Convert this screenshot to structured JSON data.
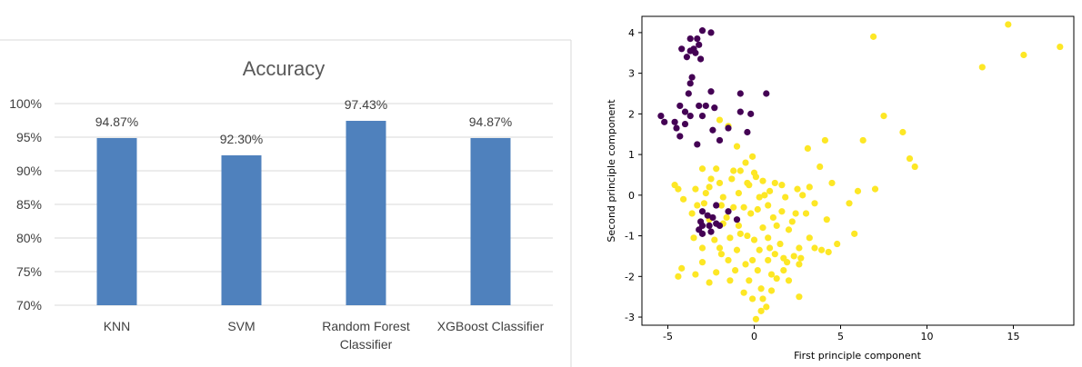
{
  "chart_data": [
    {
      "type": "bar",
      "title": "Accuracy",
      "categories": [
        "KNN",
        "SVM",
        "Random Forest Classifier",
        "XGBoost Classifier"
      ],
      "category_lines": [
        [
          "KNN"
        ],
        [
          "SVM"
        ],
        [
          "Random Forest",
          "Classifier"
        ],
        [
          "XGBoost Classifier"
        ]
      ],
      "values": [
        94.87,
        92.3,
        97.43,
        94.87
      ],
      "data_labels": [
        "94.87%",
        "92.30%",
        "97.43%",
        "94.87%"
      ],
      "ylim": [
        70,
        100
      ],
      "yticks": [
        70,
        75,
        80,
        85,
        90,
        95,
        100
      ],
      "ytick_labels": [
        "70%",
        "75%",
        "80%",
        "85%",
        "90%",
        "95%",
        "100%"
      ],
      "xlabel": "",
      "ylabel": "",
      "grid": true,
      "bar_color": "#4f81bd",
      "grid_color": "#d9d9d9"
    },
    {
      "type": "scatter",
      "title": "",
      "xlabel": "First principle component",
      "ylabel": "Second principle component",
      "xlim": [
        -6.5,
        18.5
      ],
      "ylim": [
        -3.2,
        4.4
      ],
      "xticks": [
        -5,
        0,
        5,
        10,
        15
      ],
      "yticks": [
        -3,
        -2,
        -1,
        0,
        1,
        2,
        3,
        4
      ],
      "grid": false,
      "series": [
        {
          "color": "#440154",
          "points": [
            [
              -3.0,
              4.05
            ],
            [
              -2.5,
              4.0
            ],
            [
              -3.3,
              3.85
            ],
            [
              -3.7,
              3.85
            ],
            [
              -3.2,
              3.7
            ],
            [
              -4.2,
              3.6
            ],
            [
              -3.5,
              3.6
            ],
            [
              -3.7,
              3.55
            ],
            [
              -3.4,
              3.5
            ],
            [
              -3.9,
              3.4
            ],
            [
              -3.1,
              3.35
            ],
            [
              -3.6,
              2.9
            ],
            [
              -3.7,
              2.75
            ],
            [
              -3.8,
              2.5
            ],
            [
              -2.5,
              2.55
            ],
            [
              -3.2,
              2.2
            ],
            [
              -4.3,
              2.2
            ],
            [
              -2.8,
              2.2
            ],
            [
              -2.3,
              2.15
            ],
            [
              -4.0,
              2.05
            ],
            [
              -3.7,
              1.95
            ],
            [
              -3.0,
              1.95
            ],
            [
              -5.4,
              1.95
            ],
            [
              -5.2,
              1.8
            ],
            [
              -4.6,
              1.8
            ],
            [
              -4.0,
              1.75
            ],
            [
              -4.5,
              1.65
            ],
            [
              -2.4,
              1.6
            ],
            [
              -4.3,
              1.45
            ],
            [
              -3.3,
              1.25
            ],
            [
              -2.0,
              1.35
            ],
            [
              -0.8,
              2.5
            ],
            [
              0.7,
              2.5
            ],
            [
              -0.8,
              2.05
            ],
            [
              -0.2,
              2.0
            ],
            [
              -1.5,
              1.65
            ],
            [
              -0.4,
              1.55
            ],
            [
              -3.0,
              -0.4
            ],
            [
              -2.7,
              -0.5
            ],
            [
              -2.4,
              -0.55
            ],
            [
              -3.1,
              -0.65
            ],
            [
              -2.2,
              -0.7
            ],
            [
              -2.6,
              -0.75
            ],
            [
              -3.0,
              -0.75
            ],
            [
              -2.0,
              -0.75
            ],
            [
              -3.2,
              -0.85
            ],
            [
              -2.5,
              -0.9
            ],
            [
              -3.0,
              -0.95
            ],
            [
              -2.2,
              -0.25
            ],
            [
              -1.5,
              -0.4
            ],
            [
              -1.0,
              -0.6
            ]
          ]
        },
        {
          "color": "#fde725",
          "points": [
            [
              -2.0,
              1.85
            ],
            [
              -1.5,
              1.7
            ],
            [
              -1.0,
              1.2
            ],
            [
              -0.5,
              0.8
            ],
            [
              -0.1,
              0.95
            ],
            [
              -2.2,
              0.65
            ],
            [
              -3.0,
              0.65
            ],
            [
              -1.2,
              0.6
            ],
            [
              -0.8,
              0.6
            ],
            [
              0.0,
              0.55
            ],
            [
              0.1,
              0.45
            ],
            [
              -2.5,
              0.4
            ],
            [
              -2.0,
              0.3
            ],
            [
              -1.3,
              0.4
            ],
            [
              -0.4,
              0.3
            ],
            [
              0.5,
              0.35
            ],
            [
              1.2,
              0.3
            ],
            [
              1.6,
              0.25
            ],
            [
              2.5,
              0.15
            ],
            [
              3.2,
              0.2
            ],
            [
              4.5,
              0.3
            ],
            [
              -4.6,
              0.25
            ],
            [
              -4.4,
              0.15
            ],
            [
              -3.4,
              0.15
            ],
            [
              -2.8,
              0.05
            ],
            [
              -1.8,
              -0.05
            ],
            [
              -0.9,
              0.05
            ],
            [
              0.3,
              -0.05
            ],
            [
              0.9,
              0.1
            ],
            [
              1.8,
              -0.05
            ],
            [
              2.8,
              0.0
            ],
            [
              3.5,
              -0.2
            ],
            [
              -4.1,
              -0.1
            ],
            [
              -3.3,
              -0.25
            ],
            [
              -2.9,
              -0.2
            ],
            [
              -1.9,
              -0.25
            ],
            [
              -1.2,
              -0.3
            ],
            [
              -0.6,
              -0.3
            ],
            [
              0.2,
              -0.35
            ],
            [
              0.8,
              -0.25
            ],
            [
              1.6,
              -0.4
            ],
            [
              2.4,
              -0.45
            ],
            [
              3.0,
              -0.45
            ],
            [
              4.2,
              -0.6
            ],
            [
              -3.6,
              -0.45
            ],
            [
              -2.6,
              -0.6
            ],
            [
              -1.8,
              -0.7
            ],
            [
              -0.9,
              -0.75
            ],
            [
              0.5,
              -0.8
            ],
            [
              1.3,
              -0.75
            ],
            [
              2.0,
              -0.85
            ],
            [
              -2.3,
              -1.1
            ],
            [
              -1.4,
              -1.05
            ],
            [
              -0.4,
              -1.0
            ],
            [
              0.0,
              -1.1
            ],
            [
              0.8,
              -1.05
            ],
            [
              1.5,
              -1.2
            ],
            [
              2.6,
              -1.3
            ],
            [
              3.5,
              -1.3
            ],
            [
              -3.0,
              -1.3
            ],
            [
              -2.0,
              -1.3
            ],
            [
              -1.0,
              -1.35
            ],
            [
              0.3,
              -1.35
            ],
            [
              1.2,
              -1.45
            ],
            [
              2.3,
              -1.5
            ],
            [
              3.9,
              -1.35
            ],
            [
              4.3,
              -1.4
            ],
            [
              -3.0,
              -1.65
            ],
            [
              -1.5,
              -1.6
            ],
            [
              -0.1,
              -1.6
            ],
            [
              0.8,
              -1.6
            ],
            [
              1.7,
              -1.55
            ],
            [
              2.7,
              -1.55
            ],
            [
              -4.2,
              -1.8
            ],
            [
              -2.2,
              -1.9
            ],
            [
              -1.1,
              -1.85
            ],
            [
              0.2,
              -1.85
            ],
            [
              1.0,
              -1.95
            ],
            [
              1.7,
              -1.85
            ],
            [
              2.6,
              -1.7
            ],
            [
              -2.6,
              -2.15
            ],
            [
              -1.4,
              -2.1
            ],
            [
              -0.3,
              -2.1
            ],
            [
              1.3,
              -2.05
            ],
            [
              2.0,
              -2.1
            ],
            [
              -4.4,
              -2.0
            ],
            [
              -3.4,
              -1.95
            ],
            [
              -0.6,
              -2.4
            ],
            [
              0.4,
              -2.3
            ],
            [
              1.0,
              -2.35
            ],
            [
              -0.1,
              -2.55
            ],
            [
              0.5,
              -2.55
            ],
            [
              2.6,
              -2.5
            ],
            [
              0.7,
              -2.75
            ],
            [
              0.4,
              -2.85
            ],
            [
              0.1,
              -3.05
            ],
            [
              -1.9,
              -1.45
            ],
            [
              -0.5,
              -1.7
            ],
            [
              -3.5,
              -1.05
            ],
            [
              4.8,
              -1.2
            ],
            [
              5.8,
              -0.95
            ],
            [
              5.5,
              -0.2
            ],
            [
              6.0,
              0.1
            ],
            [
              7.0,
              0.15
            ],
            [
              3.8,
              0.7
            ],
            [
              4.1,
              1.35
            ],
            [
              3.1,
              1.15
            ],
            [
              6.3,
              1.35
            ],
            [
              7.5,
              1.95
            ],
            [
              8.6,
              1.55
            ],
            [
              9.0,
              0.9
            ],
            [
              9.3,
              0.7
            ],
            [
              6.9,
              3.9
            ],
            [
              13.2,
              3.15
            ],
            [
              14.7,
              4.2
            ],
            [
              15.6,
              3.45
            ],
            [
              17.7,
              3.65
            ],
            [
              -0.3,
              0.25
            ],
            [
              0.6,
              0.0
            ],
            [
              -2.6,
              0.2
            ],
            [
              1.1,
              -0.55
            ],
            [
              -1.6,
              -0.55
            ],
            [
              2.2,
              -0.65
            ],
            [
              -0.2,
              -0.45
            ],
            [
              1.9,
              -1.65
            ],
            [
              3.2,
              -1.05
            ],
            [
              -0.8,
              -0.95
            ],
            [
              0.9,
              -1.3
            ]
          ]
        }
      ]
    }
  ]
}
